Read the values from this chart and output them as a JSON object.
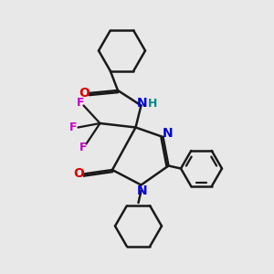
{
  "background_color": "#e8e8e8",
  "bond_color": "#1a1a1a",
  "bond_width": 1.8,
  "atom_colors": {
    "N": "#0000dd",
    "O": "#dd0000",
    "F": "#cc00cc",
    "H": "#008888",
    "C": "#1a1a1a"
  },
  "layout": {
    "xlim": [
      0,
      10
    ],
    "ylim": [
      0,
      10
    ]
  }
}
